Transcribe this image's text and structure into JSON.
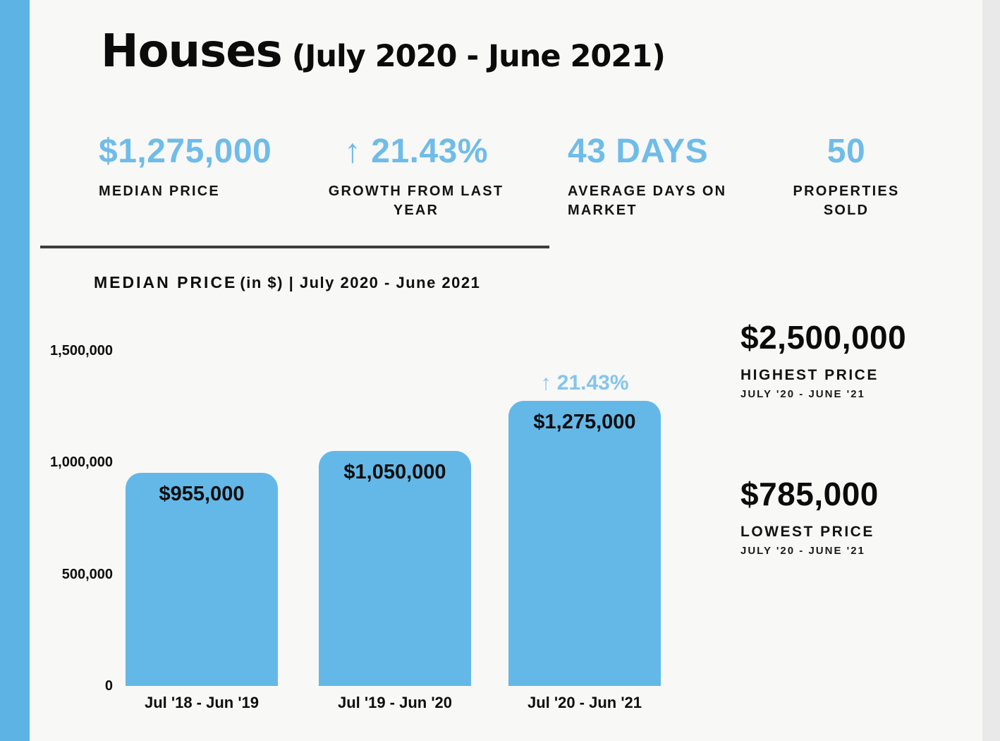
{
  "colors": {
    "accent_blue": "#6fbce9",
    "annotation_blue": "#84c5ed",
    "bar_blue": "#64b8e7",
    "stripe_blue": "#5cb3e4",
    "text_black": "#0d0d0d",
    "sheet_bg": "#f8f8f7",
    "side_band_gray": "#e9e9e9"
  },
  "header": {
    "title": "Houses",
    "subtitle": "(July 2020 - June 2021)"
  },
  "stats": [
    {
      "value": "$1,275,000",
      "label": "MEDIAN PRICE"
    },
    {
      "value": "↑ 21.43%",
      "label": "GROWTH FROM LAST YEAR"
    },
    {
      "value": "43 DAYS",
      "label": "AVERAGE DAYS ON MARKET"
    },
    {
      "value": "50",
      "label": "PROPERTIES SOLD"
    }
  ],
  "chart_heading": {
    "title": "MEDIAN PRICE",
    "subtitle": "(in $) | July 2020 - June 2021"
  },
  "chart_data": {
    "type": "bar",
    "title": "MEDIAN PRICE (in $) | July 2020 - June 2021",
    "xlabel": "",
    "ylabel": "MEDIAN PRICE (in $)",
    "categories": [
      "Jul '18 - Jun '19",
      "Jul '19 - Jun '20",
      "Jul '20 - Jun '21"
    ],
    "values": [
      955000,
      1050000,
      1275000
    ],
    "bar_labels": [
      "$955,000",
      "$1,050,000",
      "$1,275,000"
    ],
    "annotations": [
      "",
      "",
      "↑ 21.43%"
    ],
    "tick_labels": [
      "1,500,000",
      "1,000,000",
      "500,000",
      "0"
    ],
    "tick_values": [
      1500000,
      1000000,
      500000,
      0
    ],
    "ylim": [
      0,
      1500000
    ],
    "grid": false,
    "legend": false,
    "bar_color": "#64b8e7"
  },
  "side_stats": [
    {
      "value": "$2,500,000",
      "label": "HIGHEST PRICE",
      "period": "JULY '20 - JUNE '21"
    },
    {
      "value": "$785,000",
      "label": "LOWEST PRICE",
      "period": "JULY '20 - JUNE '21"
    }
  ]
}
